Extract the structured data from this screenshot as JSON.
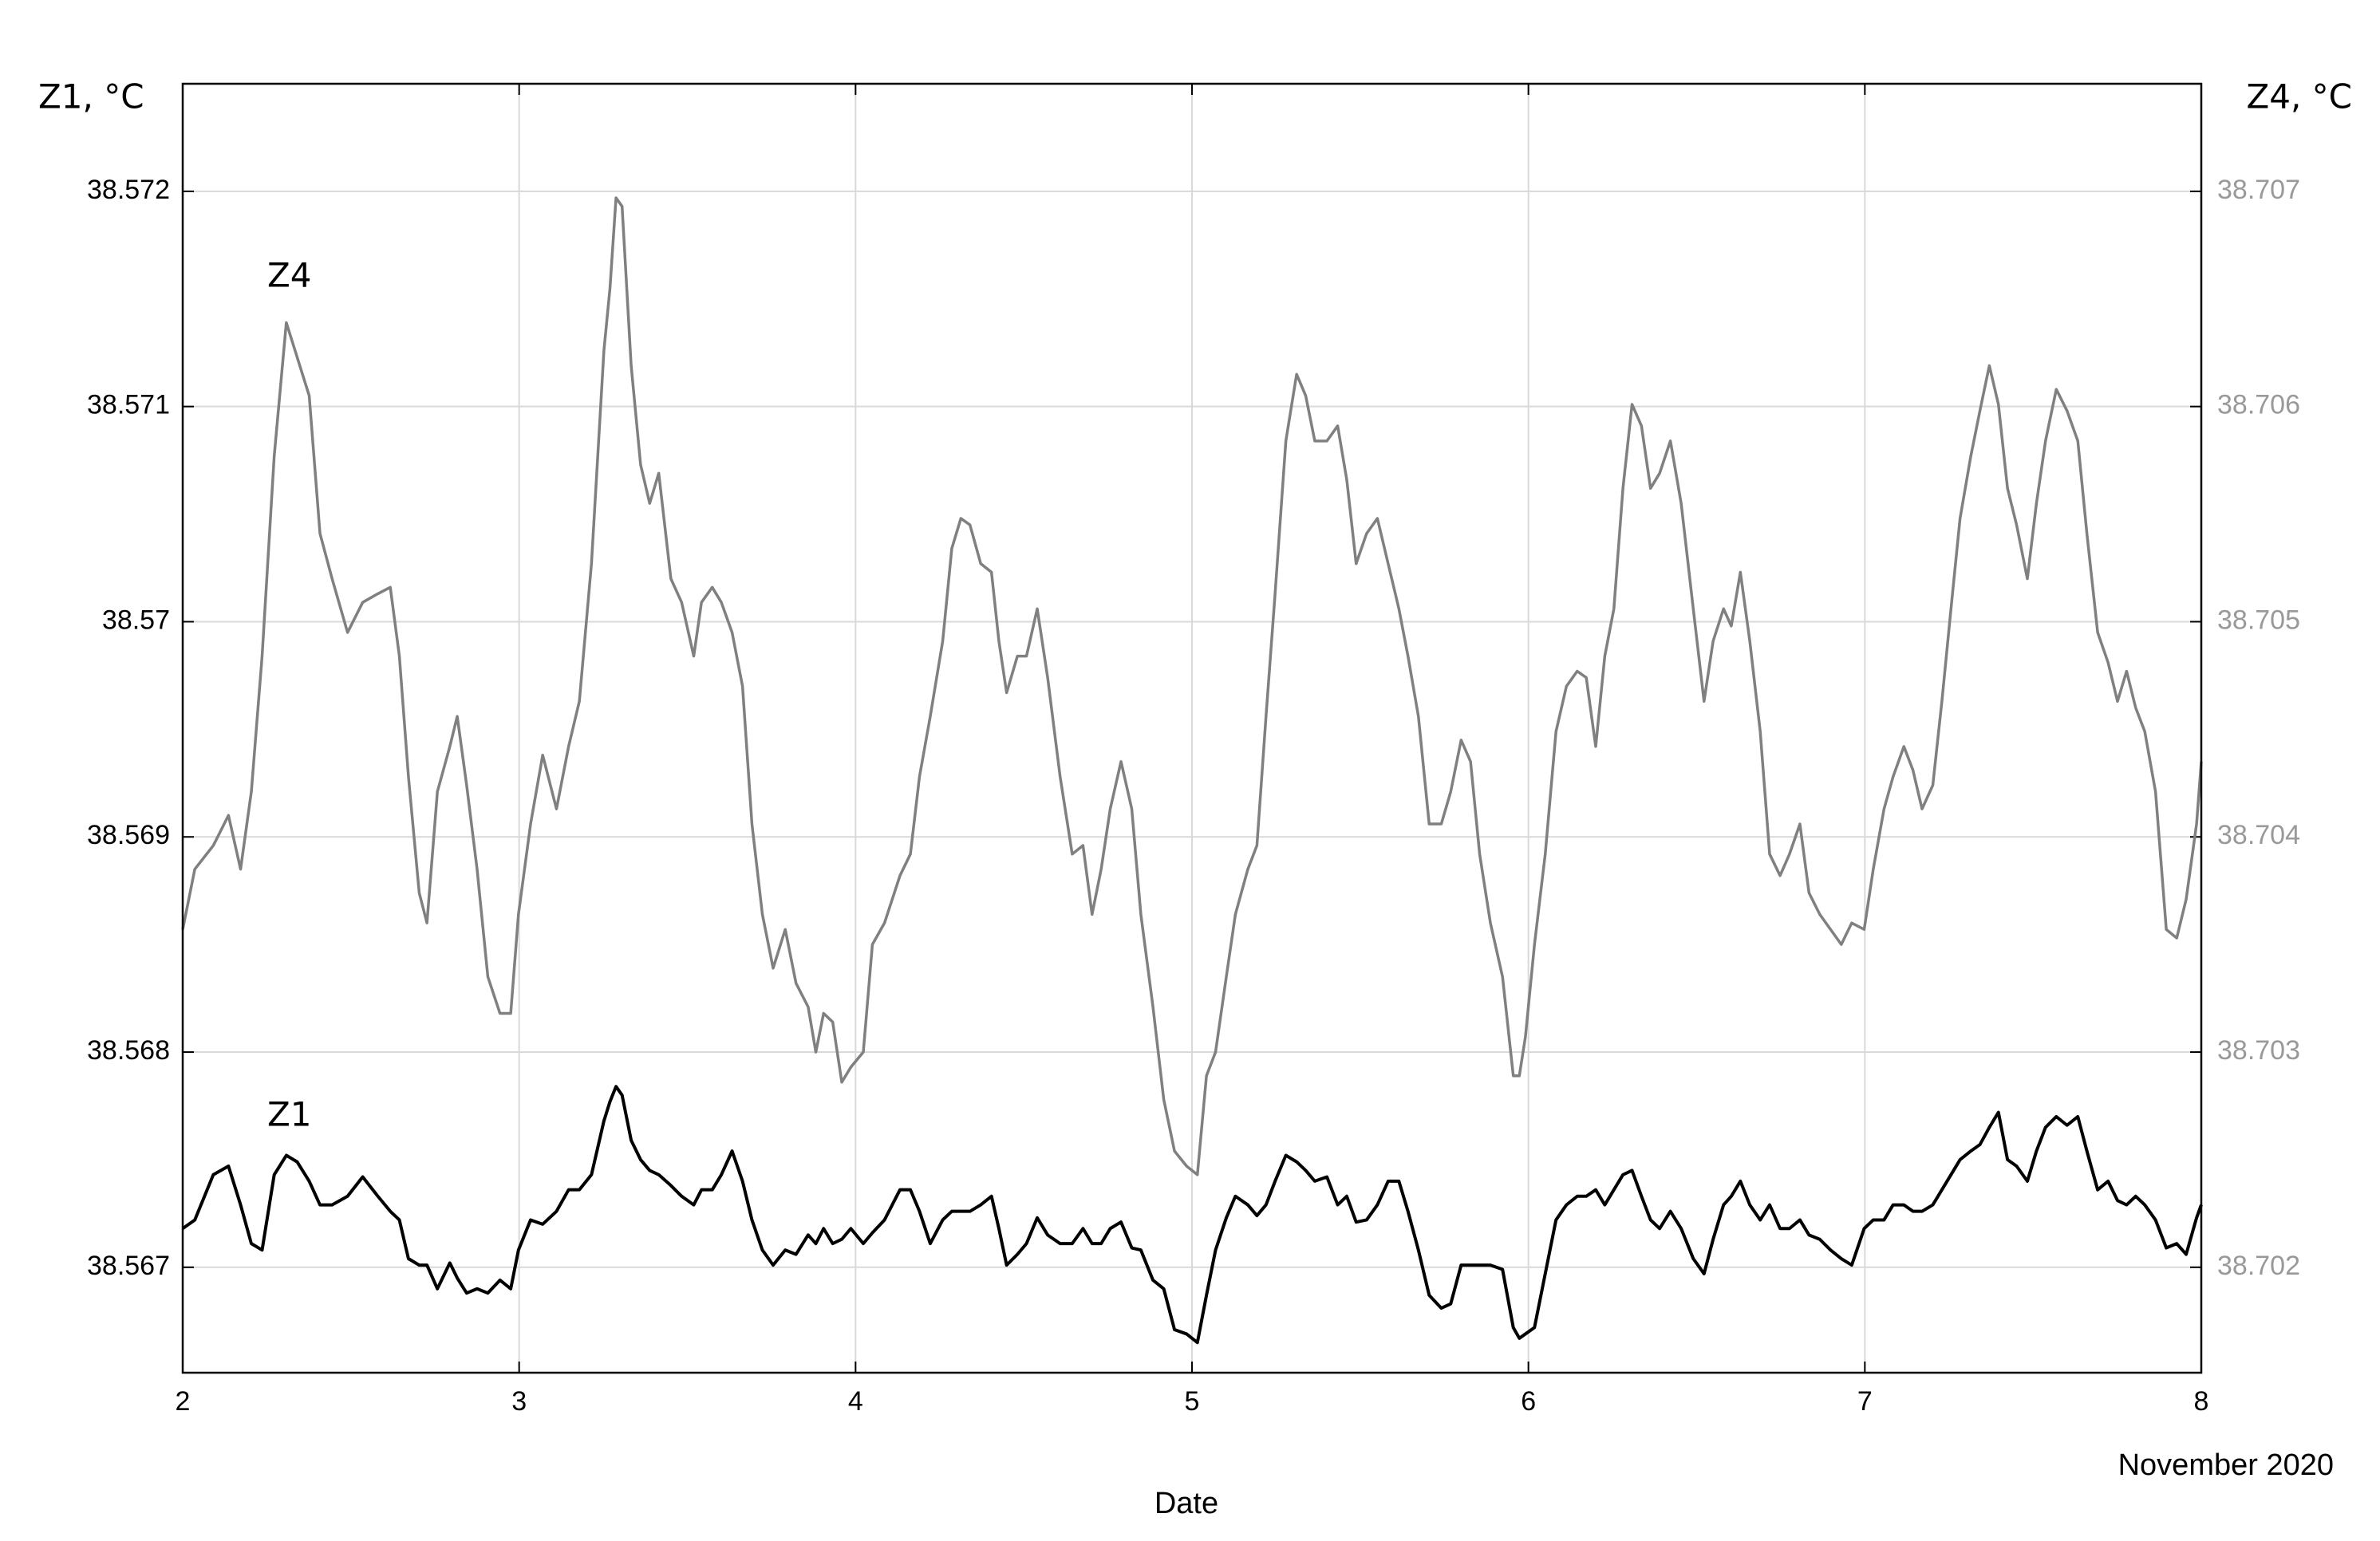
{
  "chart_data": {
    "type": "line",
    "xlabel": "Date",
    "x_note": "November 2020",
    "ylabel": "Z1, °C",
    "y2label": "Z4, °C",
    "xlim": [
      2,
      8
    ],
    "xticks": [
      2,
      3,
      4,
      5,
      6,
      7,
      8
    ],
    "ylim": [
      38.56651,
      38.5725
    ],
    "yticks": [
      38.567,
      38.568,
      38.569,
      38.57,
      38.571,
      38.572
    ],
    "y2lim": [
      38.70151,
      38.7075
    ],
    "y2ticks": [
      38.702,
      38.703,
      38.704,
      38.705,
      38.706,
      38.707
    ],
    "grid": true,
    "x": [
      2,
      2.036,
      2.091,
      2.136,
      2.172,
      2.204,
      2.236,
      2.272,
      2.308,
      2.34,
      2.376,
      2.408,
      2.444,
      2.49,
      2.535,
      2.58,
      2.617,
      2.644,
      2.671,
      2.703,
      2.726,
      2.757,
      2.794,
      2.816,
      2.844,
      2.875,
      2.907,
      2.943,
      2.975,
      2.998,
      3.034,
      3.07,
      3.111,
      3.147,
      3.179,
      3.215,
      3.252,
      3.27,
      3.288,
      3.306,
      3.333,
      3.361,
      3.388,
      3.415,
      3.451,
      3.483,
      3.519,
      3.542,
      3.574,
      3.601,
      3.633,
      3.664,
      3.692,
      3.723,
      3.755,
      3.791,
      3.823,
      3.859,
      3.882,
      3.905,
      3.932,
      3.959,
      3.986,
      4.023,
      4.05,
      4.086,
      4.132,
      4.163,
      4.19,
      4.222,
      4.259,
      4.286,
      4.313,
      4.34,
      4.372,
      4.404,
      4.426,
      4.449,
      4.481,
      4.508,
      4.54,
      4.571,
      4.608,
      4.644,
      4.676,
      4.703,
      4.73,
      4.757,
      4.789,
      4.821,
      4.848,
      4.884,
      4.916,
      4.948,
      4.984,
      5.016,
      5.043,
      5.07,
      5.102,
      5.129,
      5.166,
      5.193,
      5.22,
      5.247,
      5.279,
      5.311,
      5.338,
      5.365,
      5.401,
      5.433,
      5.46,
      5.488,
      5.519,
      5.551,
      5.583,
      5.615,
      5.642,
      5.673,
      5.705,
      5.741,
      5.769,
      5.8,
      5.828,
      5.855,
      5.887,
      5.923,
      5.955,
      5.973,
      5.991,
      6.018,
      6.05,
      6.082,
      6.113,
      6.145,
      6.172,
      6.2,
      6.227,
      6.254,
      6.281,
      6.308,
      6.336,
      6.363,
      6.39,
      6.422,
      6.454,
      6.49,
      6.522,
      6.549,
      6.58,
      6.603,
      6.63,
      6.658,
      6.689,
      6.717,
      6.748,
      6.776,
      6.807,
      6.834,
      6.866,
      6.898,
      6.93,
      6.961,
      6.998,
      7.025,
      7.057,
      7.084,
      7.116,
      7.143,
      7.17,
      7.202,
      7.229,
      7.256,
      7.283,
      7.315,
      7.342,
      7.37,
      7.397,
      7.424,
      7.451,
      7.483,
      7.51,
      7.537,
      7.569,
      7.601,
      7.633,
      7.66,
      7.692,
      7.723,
      7.751,
      7.778,
      7.805,
      7.832,
      7.864,
      7.896,
      7.927,
      7.955,
      7.986,
      8
    ],
    "series": [
      {
        "name": "Z1",
        "color": "#000000",
        "axis": "y",
        "values": [
          38.56718,
          38.56722,
          38.56743,
          38.56747,
          38.56729,
          38.56711,
          38.56708,
          38.56743,
          38.56752,
          38.56749,
          38.5674,
          38.56729,
          38.56729,
          38.56733,
          38.56742,
          38.56733,
          38.56726,
          38.56722,
          38.56704,
          38.56701,
          38.56701,
          38.5669,
          38.56702,
          38.56695,
          38.56688,
          38.5669,
          38.56688,
          38.56694,
          38.5669,
          38.56708,
          38.56722,
          38.5672,
          38.56726,
          38.56736,
          38.56736,
          38.56743,
          38.56768,
          38.56777,
          38.56784,
          38.5678,
          38.56759,
          38.5675,
          38.56745,
          38.56743,
          38.56738,
          38.56733,
          38.56729,
          38.56736,
          38.56736,
          38.56743,
          38.56754,
          38.5674,
          38.56722,
          38.56708,
          38.56701,
          38.56708,
          38.56706,
          38.56715,
          38.56711,
          38.56718,
          38.56711,
          38.56713,
          38.56718,
          38.56711,
          38.56716,
          38.56722,
          38.56736,
          38.56736,
          38.56726,
          38.56711,
          38.56722,
          38.56726,
          38.56726,
          38.56726,
          38.56729,
          38.56733,
          38.56718,
          38.56701,
          38.56706,
          38.56711,
          38.56723,
          38.56715,
          38.56711,
          38.56711,
          38.56718,
          38.56711,
          38.56711,
          38.56718,
          38.56721,
          38.56709,
          38.56708,
          38.56694,
          38.5669,
          38.56671,
          38.56669,
          38.56665,
          38.56687,
          38.56708,
          38.56723,
          38.56733,
          38.56729,
          38.56724,
          38.56729,
          38.5674,
          38.56752,
          38.56749,
          38.56745,
          38.5674,
          38.56742,
          38.56729,
          38.56733,
          38.56721,
          38.56722,
          38.56729,
          38.5674,
          38.5674,
          38.56726,
          38.56708,
          38.56687,
          38.56681,
          38.56683,
          38.56701,
          38.56701,
          38.56701,
          38.56701,
          38.56699,
          38.56672,
          38.56667,
          38.56669,
          38.56672,
          38.56697,
          38.56722,
          38.56729,
          38.56733,
          38.56733,
          38.56736,
          38.56729,
          38.56736,
          38.56743,
          38.56745,
          38.56733,
          38.56722,
          38.56718,
          38.56726,
          38.56718,
          38.56704,
          38.56697,
          38.56713,
          38.56729,
          38.56733,
          38.5674,
          38.56729,
          38.56722,
          38.56729,
          38.56718,
          38.56718,
          38.56722,
          38.56715,
          38.56713,
          38.56708,
          38.56704,
          38.56701,
          38.56718,
          38.56722,
          38.56722,
          38.56729,
          38.56729,
          38.56726,
          38.56726,
          38.56729,
          38.56736,
          38.56743,
          38.5675,
          38.56754,
          38.56757,
          38.56765,
          38.56772,
          38.5675,
          38.56747,
          38.5674,
          38.56754,
          38.56765,
          38.5677,
          38.56766,
          38.5677,
          38.56754,
          38.56736,
          38.5674,
          38.56731,
          38.56729,
          38.56733,
          38.56729,
          38.56722,
          38.56709,
          38.56711,
          38.56706,
          38.56723,
          38.56729
        ]
      },
      {
        "name": "Z4",
        "color": "#808080",
        "axis": "y2",
        "values": [
          38.70357,
          38.70385,
          38.70396,
          38.7041,
          38.70385,
          38.70421,
          38.70484,
          38.70577,
          38.70639,
          38.70623,
          38.70605,
          38.70541,
          38.7052,
          38.70495,
          38.70509,
          38.70513,
          38.70516,
          38.70484,
          38.70428,
          38.70374,
          38.7036,
          38.70421,
          38.70442,
          38.70456,
          38.70424,
          38.70385,
          38.70335,
          38.70318,
          38.70318,
          38.70364,
          38.70406,
          38.70438,
          38.70413,
          38.70442,
          38.70463,
          38.70527,
          38.70626,
          38.70655,
          38.70697,
          38.70693,
          38.70619,
          38.70573,
          38.70555,
          38.70569,
          38.7052,
          38.70509,
          38.70484,
          38.70509,
          38.70516,
          38.70509,
          38.70495,
          38.7047,
          38.70406,
          38.70364,
          38.70339,
          38.70357,
          38.70332,
          38.70321,
          38.703,
          38.70318,
          38.70314,
          38.70286,
          38.70293,
          38.703,
          38.7035,
          38.7036,
          38.70382,
          38.70392,
          38.70428,
          38.70456,
          38.70491,
          38.70534,
          38.70548,
          38.70545,
          38.70527,
          38.70523,
          38.70491,
          38.70467,
          38.70484,
          38.70484,
          38.70506,
          38.70474,
          38.70428,
          38.70392,
          38.70396,
          38.70364,
          38.70385,
          38.70413,
          38.70435,
          38.70413,
          38.70364,
          38.70321,
          38.70278,
          38.70254,
          38.70247,
          38.70243,
          38.70289,
          38.703,
          38.70335,
          38.70364,
          38.70385,
          38.70396,
          38.70456,
          38.70513,
          38.70584,
          38.70615,
          38.70605,
          38.70584,
          38.70584,
          38.70591,
          38.70566,
          38.70527,
          38.70541,
          38.70548,
          38.70527,
          38.70506,
          38.70484,
          38.70456,
          38.70406,
          38.70406,
          38.70421,
          38.70445,
          38.70435,
          38.70392,
          38.7036,
          38.70335,
          38.70289,
          38.70289,
          38.70307,
          38.7035,
          38.70392,
          38.70449,
          38.7047,
          38.70477,
          38.70474,
          38.70442,
          38.70484,
          38.70506,
          38.70562,
          38.70601,
          38.70591,
          38.70562,
          38.70569,
          38.70584,
          38.70555,
          38.70506,
          38.70463,
          38.70491,
          38.70506,
          38.70498,
          38.70523,
          38.70491,
          38.70449,
          38.70392,
          38.70382,
          38.70392,
          38.70406,
          38.70374,
          38.70364,
          38.70357,
          38.7035,
          38.7036,
          38.70357,
          38.70385,
          38.70413,
          38.70428,
          38.70442,
          38.70431,
          38.70413,
          38.70424,
          38.70463,
          38.70506,
          38.70548,
          38.70577,
          38.70598,
          38.70619,
          38.70601,
          38.70562,
          38.70545,
          38.7052,
          38.70555,
          38.70584,
          38.70608,
          38.70598,
          38.70584,
          38.70541,
          38.70495,
          38.70481,
          38.70463,
          38.70477,
          38.7046,
          38.70449,
          38.70421,
          38.70357,
          38.70353,
          38.70371,
          38.70406,
          38.70435
        ]
      }
    ]
  }
}
